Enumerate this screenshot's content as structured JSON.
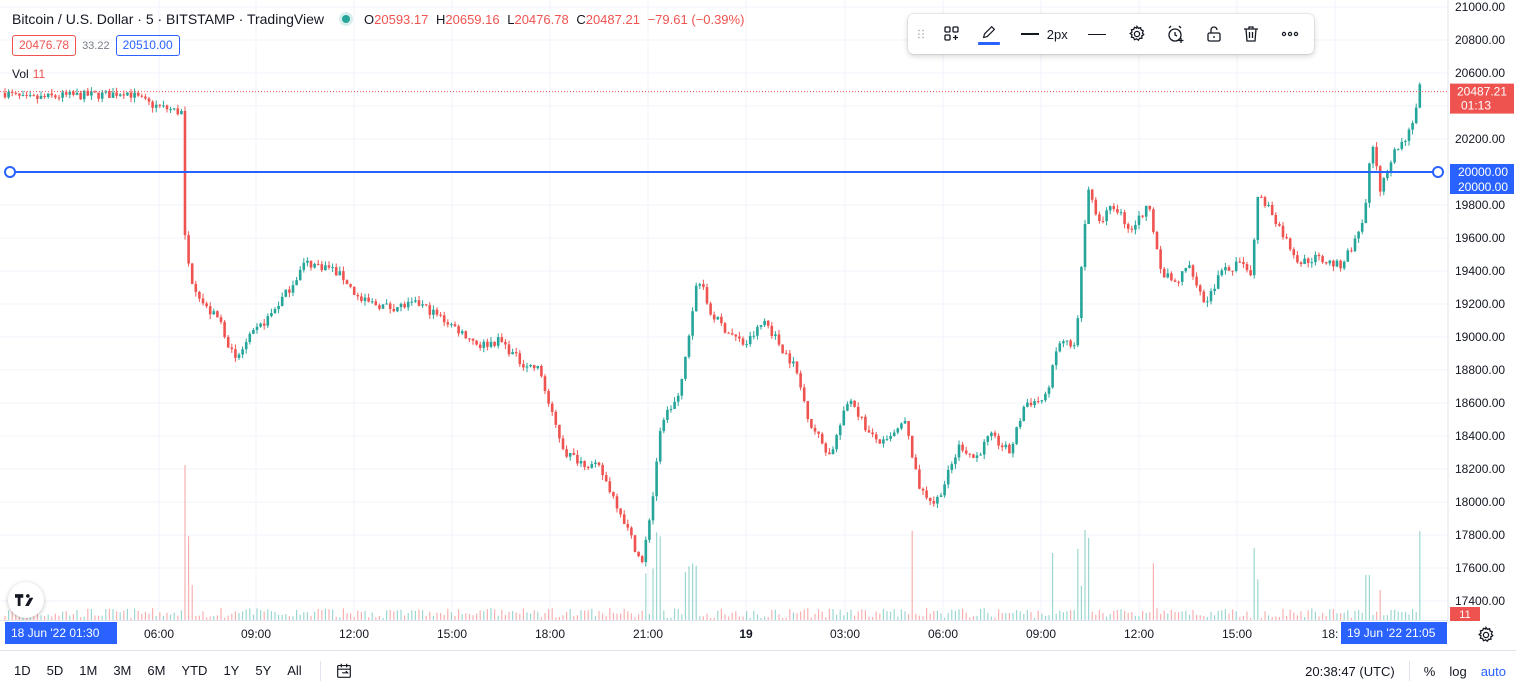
{
  "header": {
    "title": "Bitcoin / U.S. Dollar · 5 · BITSTAMP · TradingView",
    "ohlc": {
      "o_label": "O",
      "o": "20593.17",
      "h_label": "H",
      "h": "20659.16",
      "l_label": "L",
      "l": "20476.78",
      "c_label": "C",
      "c": "20487.21",
      "change": "−79.61 (−0.39%)"
    },
    "bid": "20476.78",
    "spread": "33.22",
    "ask": "20510.00",
    "vol_label": "Vol",
    "vol_value": "11",
    "status_color": "#26a69a"
  },
  "toolbar": {
    "width_label": "2px",
    "icons": [
      "drag-handle-icon",
      "templates-icon",
      "pencil-icon",
      "line-width-icon",
      "line-style-icon",
      "gear-icon",
      "alert-add-icon",
      "unlock-icon",
      "trash-icon",
      "more-icon"
    ]
  },
  "time_axis": {
    "labels": [
      "06:00",
      "09:00",
      "12:00",
      "15:00",
      "18:00",
      "21:00",
      "19",
      "03:00",
      "06:00",
      "09:00",
      "12:00",
      "15:00",
      "18:"
    ],
    "start_badge": "18 Jun '22  01:30",
    "end_badge": "19 Jun '22  21:05"
  },
  "bottom": {
    "ranges": [
      "1D",
      "5D",
      "1M",
      "3M",
      "6M",
      "YTD",
      "1Y",
      "5Y",
      "All"
    ],
    "clock": "20:38:47 (UTC)",
    "percent": "%",
    "log": "log",
    "auto": "auto"
  },
  "chart_data": {
    "type": "candlestick",
    "y_ticks": [
      21000,
      20800,
      20600,
      20400,
      20200,
      20000,
      19800,
      19600,
      19400,
      19200,
      19000,
      18800,
      18600,
      18400,
      18200,
      18000,
      17800,
      17600,
      17400
    ],
    "y_tick_labels": [
      "21000.00",
      "20800.00",
      "20600.00",
      "20400.00",
      "20200.00",
      "20000.00",
      "19800.00",
      "19600.00",
      "19400.00",
      "19200.00",
      "19000.00",
      "18800.00",
      "18600.00",
      "18400.00",
      "18200.00",
      "18000.00",
      "17800.00",
      "17600.00",
      "17400.00"
    ],
    "ylim": [
      17330,
      21030
    ],
    "horizontal_line": {
      "value": 20000,
      "label": "20000.00",
      "label2": "20000.00",
      "color": "#2962ff"
    },
    "last_price": {
      "value": 20487.21,
      "label": "20487.21",
      "countdown": "01:13",
      "color": "#ef5350"
    },
    "volume_badge": "11",
    "up_color": "#26a69a",
    "down_color": "#ef5350",
    "anchors": [
      [
        5,
        20480
      ],
      [
        25,
        20440
      ],
      [
        60,
        20460
      ],
      [
        110,
        20470
      ],
      [
        125,
        20490
      ],
      [
        150,
        20410
      ],
      [
        182,
        20360
      ],
      [
        185,
        19600
      ],
      [
        192,
        19350
      ],
      [
        205,
        19180
      ],
      [
        220,
        19100
      ],
      [
        235,
        18850
      ],
      [
        248,
        18980
      ],
      [
        270,
        19130
      ],
      [
        290,
        19300
      ],
      [
        305,
        19450
      ],
      [
        330,
        19420
      ],
      [
        345,
        19350
      ],
      [
        360,
        19220
      ],
      [
        390,
        19180
      ],
      [
        420,
        19200
      ],
      [
        450,
        19080
      ],
      [
        480,
        18950
      ],
      [
        500,
        18980
      ],
      [
        520,
        18850
      ],
      [
        540,
        18800
      ],
      [
        550,
        18560
      ],
      [
        565,
        18300
      ],
      [
        580,
        18250
      ],
      [
        600,
        18200
      ],
      [
        620,
        17950
      ],
      [
        630,
        17800
      ],
      [
        642,
        17620
      ],
      [
        652,
        17980
      ],
      [
        662,
        18500
      ],
      [
        680,
        18650
      ],
      [
        698,
        19380
      ],
      [
        710,
        19150
      ],
      [
        725,
        19050
      ],
      [
        745,
        18950
      ],
      [
        765,
        19100
      ],
      [
        780,
        18950
      ],
      [
        795,
        18820
      ],
      [
        810,
        18480
      ],
      [
        830,
        18280
      ],
      [
        850,
        18640
      ],
      [
        870,
        18400
      ],
      [
        885,
        18350
      ],
      [
        905,
        18480
      ],
      [
        920,
        18080
      ],
      [
        935,
        17990
      ],
      [
        945,
        18120
      ],
      [
        960,
        18350
      ],
      [
        975,
        18260
      ],
      [
        990,
        18400
      ],
      [
        1010,
        18300
      ],
      [
        1025,
        18600
      ],
      [
        1045,
        18620
      ],
      [
        1060,
        18980
      ],
      [
        1075,
        18920
      ],
      [
        1088,
        19900
      ],
      [
        1100,
        19700
      ],
      [
        1115,
        19800
      ],
      [
        1130,
        19650
      ],
      [
        1150,
        19800
      ],
      [
        1160,
        19400
      ],
      [
        1175,
        19320
      ],
      [
        1190,
        19440
      ],
      [
        1205,
        19200
      ],
      [
        1220,
        19380
      ],
      [
        1240,
        19450
      ],
      [
        1250,
        19350
      ],
      [
        1258,
        19850
      ],
      [
        1270,
        19780
      ],
      [
        1285,
        19600
      ],
      [
        1300,
        19450
      ],
      [
        1315,
        19480
      ],
      [
        1340,
        19430
      ],
      [
        1355,
        19580
      ],
      [
        1365,
        19750
      ],
      [
        1372,
        20200
      ],
      [
        1380,
        19900
      ],
      [
        1392,
        20100
      ],
      [
        1405,
        20200
      ],
      [
        1415,
        20350
      ],
      [
        1420,
        20520
      ]
    ]
  }
}
